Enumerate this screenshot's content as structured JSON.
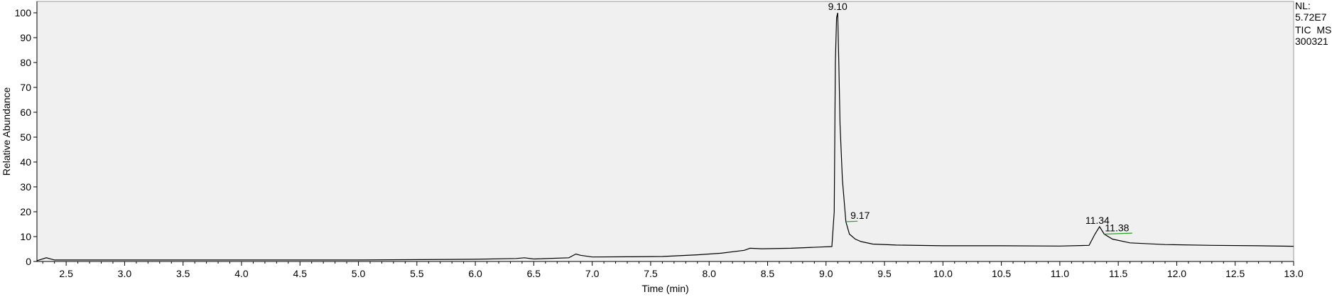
{
  "info": {
    "nl_label": "NL:",
    "nl_value": "5.72E7",
    "filter": "TIC  MS",
    "sample": "300321"
  },
  "chart_data": {
    "type": "line",
    "xlabel": "Time (min)",
    "ylabel": "Relative Abundance",
    "xlim": [
      2.25,
      13.0
    ],
    "ylim": [
      0,
      100
    ],
    "x_ticks": [
      "2.5",
      "3.0",
      "3.5",
      "4.0",
      "4.5",
      "5.0",
      "5.5",
      "6.0",
      "6.5",
      "7.0",
      "7.5",
      "8.0",
      "8.5",
      "9.0",
      "9.5",
      "10.0",
      "10.5",
      "11.0",
      "11.5",
      "12.0",
      "12.5",
      "13.0"
    ],
    "y_ticks": [
      "0",
      "10",
      "20",
      "30",
      "40",
      "50",
      "60",
      "70",
      "80",
      "90",
      "100"
    ],
    "colors": {
      "plot_bg": "#f0f0f0",
      "trace": "#000000",
      "baseline_marker": "#2aa02a"
    },
    "series": [
      {
        "x": [
          2.25,
          2.33,
          2.4,
          3.0,
          4.0,
          5.0,
          6.0,
          6.35,
          6.42,
          6.5,
          6.8,
          6.86,
          6.9,
          7.0,
          7.3,
          7.6,
          7.9,
          8.1,
          8.3,
          8.35,
          8.45,
          8.7,
          8.95,
          9.05,
          9.07,
          9.08,
          9.09,
          9.1,
          9.11,
          9.12,
          9.14,
          9.17,
          9.2,
          9.25,
          9.3,
          9.4,
          9.6,
          10.0,
          10.5,
          11.0,
          11.25,
          11.3,
          11.34,
          11.38,
          11.45,
          11.6,
          11.9,
          12.3,
          12.7,
          13.0
        ],
        "y": [
          0.3,
          1.5,
          0.6,
          0.6,
          0.6,
          0.6,
          0.9,
          1.2,
          1.5,
          1.0,
          1.5,
          3.0,
          2.5,
          1.8,
          1.9,
          2.0,
          2.7,
          3.3,
          4.5,
          5.3,
          5.1,
          5.3,
          5.8,
          6.0,
          20.0,
          80.0,
          98.0,
          100.0,
          78.0,
          55.0,
          33.0,
          16.0,
          11.0,
          9.0,
          8.0,
          7.0,
          6.6,
          6.3,
          6.3,
          6.2,
          6.5,
          11.0,
          14.0,
          11.0,
          9.0,
          7.5,
          6.8,
          6.5,
          6.3,
          6.1
        ]
      }
    ],
    "annotations": [
      {
        "text": "9.10",
        "x": 9.1,
        "y": 100
      },
      {
        "text": "9.17",
        "x": 9.17,
        "y": 16
      },
      {
        "text": "11.34",
        "x": 11.34,
        "y": 14
      },
      {
        "text": "11.38",
        "x": 11.38,
        "y": 11
      }
    ],
    "baseline_marks": [
      {
        "x1": 9.17,
        "y1": 16.0,
        "x2": 9.27,
        "y2": 16.2
      },
      {
        "x1": 11.38,
        "y1": 11.0,
        "x2": 11.62,
        "y2": 11.4
      }
    ]
  }
}
